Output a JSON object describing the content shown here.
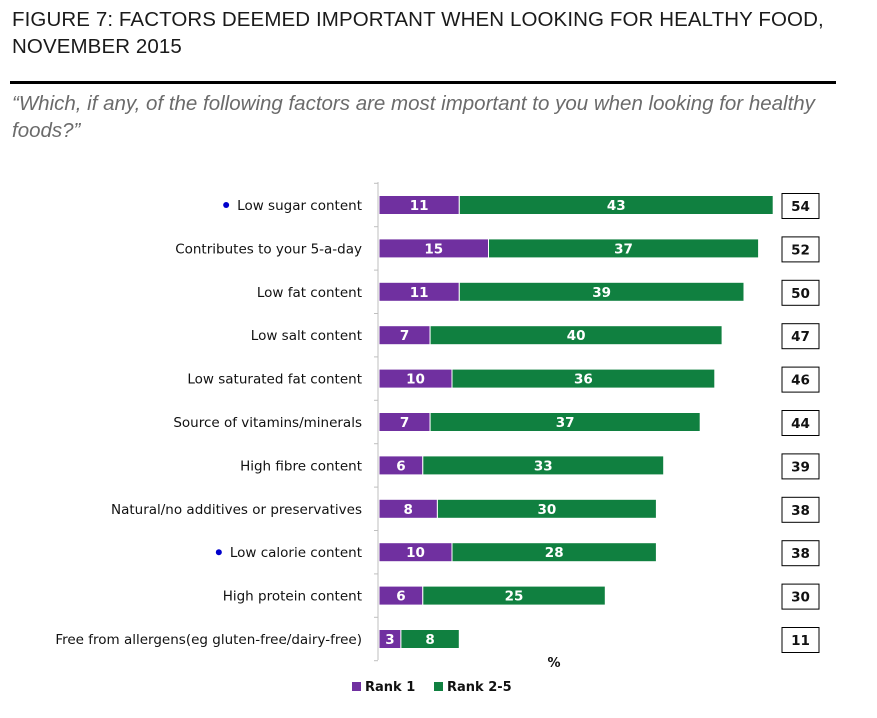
{
  "figure": {
    "title": "FIGURE 7: FACTORS DEEMED IMPORTANT WHEN LOOKING FOR HEALTHY FOOD, NOVEMBER 2015",
    "question": "“Which, if any, of the following factors are most important to you when looking for healthy foods?”"
  },
  "colors": {
    "rank1": "#7030a0",
    "rank25": "#108040",
    "bullet": "#0000cc"
  },
  "chart_data": {
    "type": "bar",
    "orientation": "horizontal",
    "stacked": true,
    "title": "FIGURE 7: FACTORS DEEMED IMPORTANT WHEN LOOKING FOR HEALTHY FOOD, NOVEMBER 2015",
    "xlabel": "%",
    "ylabel": "",
    "xlim": [
      0,
      54
    ],
    "categories": [
      "Low sugar content",
      "Contributes to your 5-a-day",
      "Low fat content",
      "Low salt content",
      "Low saturated fat content",
      "Source of vitamins/minerals",
      "High fibre content",
      "Natural/no additives or preservatives",
      "Low calorie content",
      "High protein content",
      "Free from allergens(eg gluten-free/dairy-free)"
    ],
    "bulleted": [
      true,
      false,
      false,
      false,
      false,
      false,
      false,
      false,
      true,
      false,
      false
    ],
    "series": [
      {
        "name": "Rank 1",
        "values": [
          11,
          15,
          11,
          7,
          10,
          7,
          6,
          8,
          10,
          6,
          3
        ]
      },
      {
        "name": "Rank 2-5",
        "values": [
          43,
          37,
          39,
          40,
          36,
          37,
          33,
          30,
          28,
          25,
          8
        ]
      }
    ],
    "totals": [
      54,
      52,
      50,
      47,
      46,
      44,
      39,
      38,
      38,
      30,
      11
    ],
    "legend": [
      "Rank 1",
      "Rank 2-5"
    ],
    "legend_position": "bottom",
    "grid": false
  }
}
